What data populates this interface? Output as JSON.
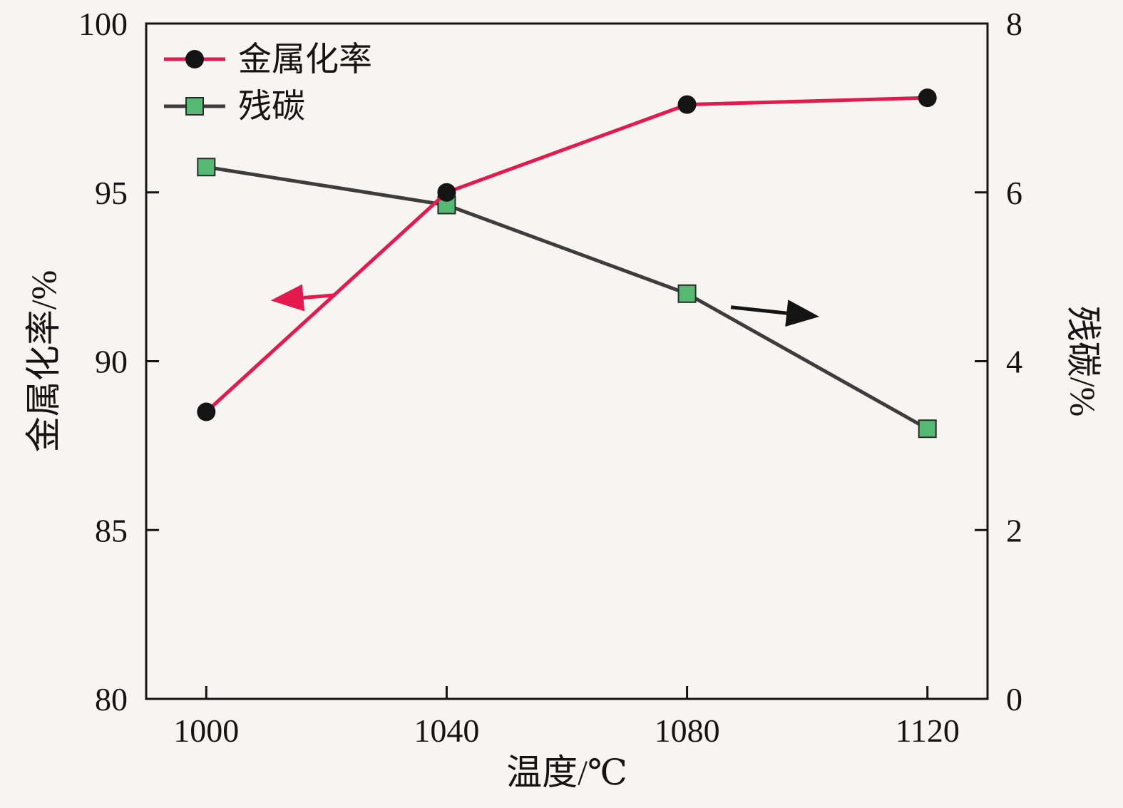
{
  "chart_data": {
    "type": "line",
    "title": "",
    "xlabel": "温度/℃",
    "ylabel_left": "金属化率/%",
    "ylabel_right": "残碳/%",
    "x": [
      1000,
      1040,
      1080,
      1120
    ],
    "xlim": [
      990,
      1130
    ],
    "x_ticks": [
      1000,
      1040,
      1080,
      1120
    ],
    "left_axis": {
      "range": [
        80,
        100
      ],
      "ticks": [
        80,
        85,
        90,
        95,
        100
      ]
    },
    "right_axis": {
      "range": [
        0,
        8
      ],
      "ticks": [
        0,
        2,
        4,
        6,
        8
      ]
    },
    "grid": false,
    "legend_position": "top-left",
    "series": [
      {
        "name": "金属化率",
        "axis": "left",
        "color": "#e4194d",
        "marker": "circle",
        "marker_color": "#141414",
        "values": [
          88.5,
          95.0,
          97.6,
          97.8
        ]
      },
      {
        "name": "残碳",
        "axis": "right",
        "color": "#3d3d3d",
        "marker": "square",
        "marker_color": "#55b973",
        "values": [
          6.3,
          5.85,
          4.8,
          3.2
        ]
      }
    ],
    "arrows": [
      {
        "name": "left-axis-pointer",
        "color": "#e4194d",
        "from": [
          0.225,
          0.402
        ],
        "to": [
          0.148,
          0.41
        ]
      },
      {
        "name": "right-axis-pointer",
        "color": "#141414",
        "from": [
          0.695,
          0.42
        ],
        "to": [
          0.8,
          0.434
        ]
      }
    ]
  }
}
